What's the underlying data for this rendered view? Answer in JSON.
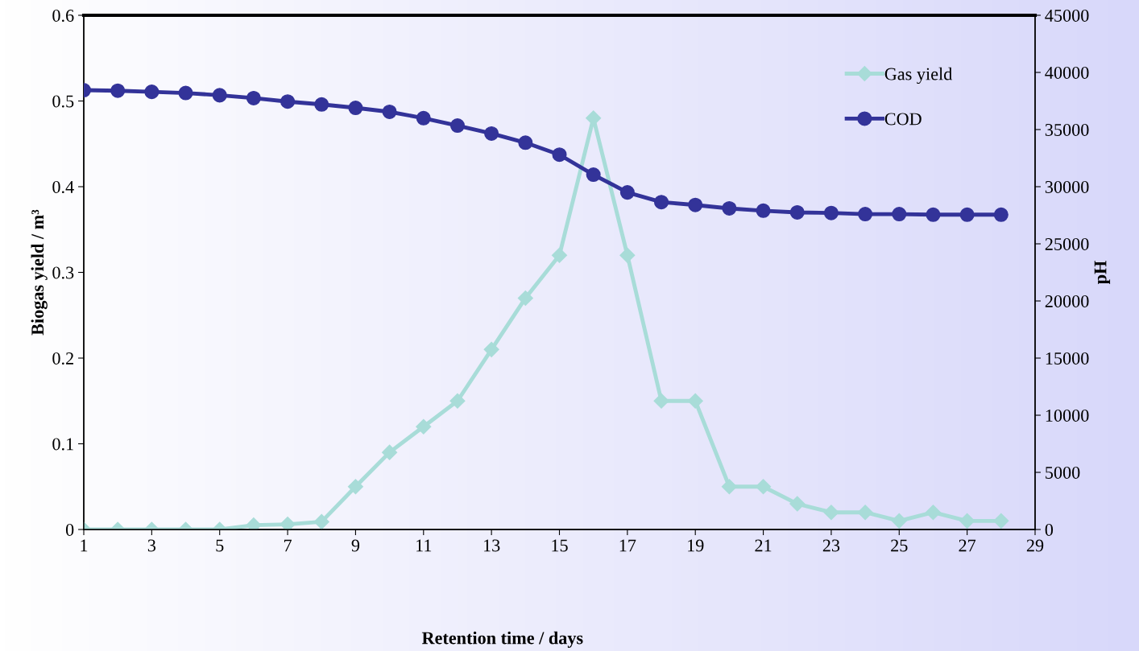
{
  "chart_data": {
    "type": "line",
    "xlabel": "Retention time / days",
    "ylabel": "Biogas yield / m³",
    "y2label": "pH",
    "x": [
      1,
      2,
      3,
      4,
      5,
      6,
      7,
      8,
      9,
      10,
      11,
      12,
      13,
      14,
      15,
      16,
      17,
      18,
      19,
      20,
      21,
      22,
      23,
      24,
      25,
      26,
      27,
      28
    ],
    "series": [
      {
        "name": "Gas yield",
        "color": "#a8dcd8",
        "marker": "diamond",
        "values": [
          0,
          0,
          0,
          0,
          0,
          0.005,
          0.006,
          0.009,
          0.05,
          0.09,
          0.12,
          0.15,
          0.21,
          0.27,
          0.32,
          0.48,
          0.32,
          0.15,
          0.15,
          0.05,
          0.05,
          0.03,
          0.02,
          0.02,
          0.01,
          0.02,
          0.01,
          0.01
        ]
      },
      {
        "name": "COD",
        "color": "#333399",
        "marker": "circle",
        "axis": "y2",
        "values": [
          38450,
          38400,
          38300,
          38200,
          38000,
          37750,
          37450,
          37200,
          36900,
          36550,
          36000,
          35350,
          34650,
          33850,
          32800,
          31050,
          29500,
          28650,
          28400,
          28100,
          27900,
          27750,
          27700,
          27600,
          27600,
          27550,
          27550,
          27550
        ]
      }
    ],
    "xlim": [
      1,
      29
    ],
    "xticks": [
      1,
      3,
      5,
      7,
      9,
      11,
      13,
      15,
      17,
      19,
      21,
      23,
      25,
      27,
      29
    ],
    "ylim": [
      0,
      0.6
    ],
    "yticks": [
      0,
      0.1,
      0.2,
      0.3,
      0.4,
      0.5,
      0.6
    ],
    "y2lim": [
      0,
      45000
    ],
    "y2ticks": [
      0,
      5000,
      10000,
      15000,
      20000,
      25000,
      30000,
      35000,
      40000,
      45000
    ],
    "grid": false,
    "legend": "top right",
    "line_style": "solid"
  }
}
